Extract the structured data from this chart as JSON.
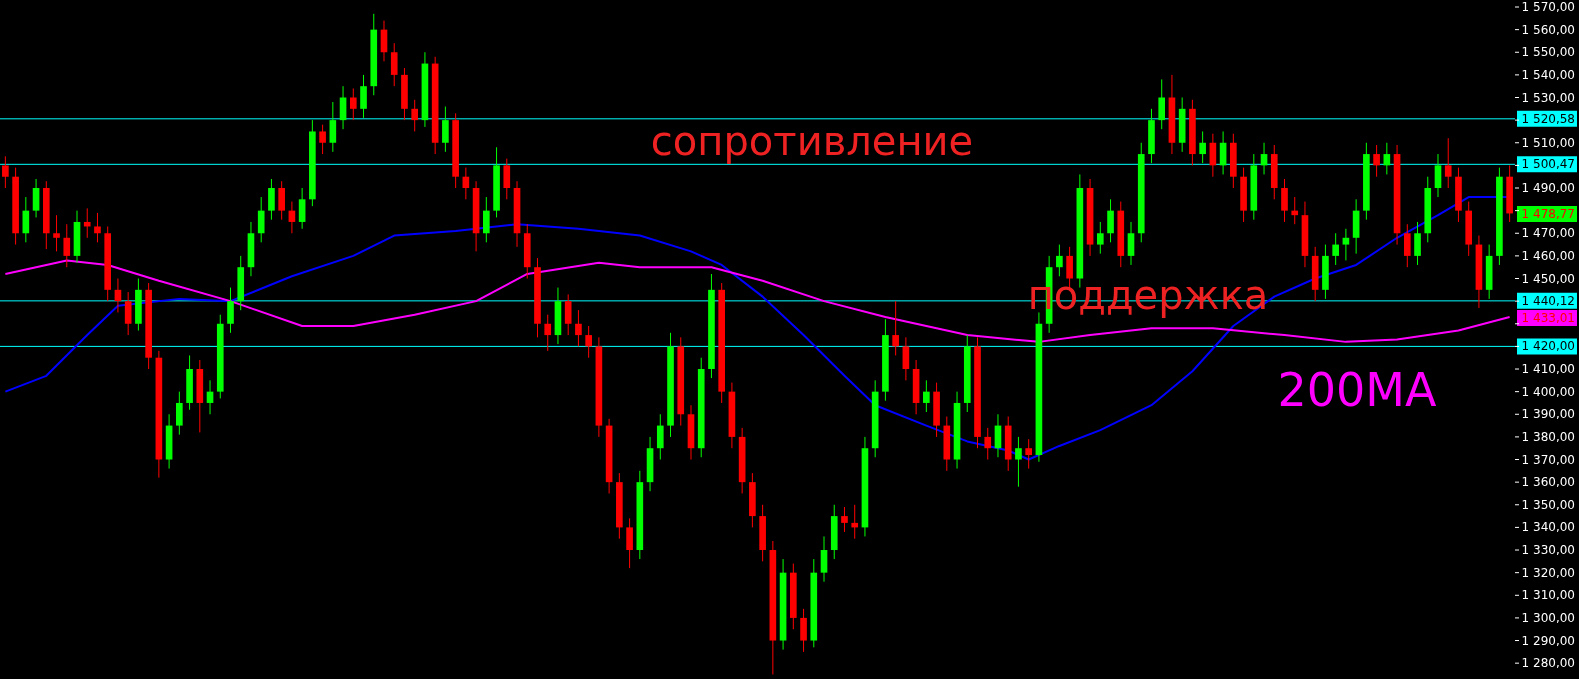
{
  "chart_data": {
    "type": "candlestick",
    "categories": [
      null,
      null,
      null,
      null,
      null,
      null,
      null,
      null,
      null,
      null,
      null,
      null,
      null,
      null,
      null,
      null,
      null,
      null,
      null,
      null,
      null,
      null,
      null,
      null,
      null,
      null,
      null,
      null,
      null,
      null,
      null,
      null,
      null,
      null,
      null,
      null,
      null,
      null,
      null,
      null,
      null,
      null,
      null,
      null,
      null,
      null,
      null,
      null,
      null,
      null,
      null,
      null,
      null,
      null,
      null,
      null,
      null,
      null,
      null,
      null,
      null,
      null,
      null,
      null,
      null,
      null,
      null,
      null,
      null,
      null,
      null,
      null,
      null,
      null,
      null,
      null,
      null,
      null,
      null,
      null,
      null,
      null,
      null,
      null,
      null,
      null,
      null,
      null,
      null,
      null,
      null,
      null,
      null,
      null,
      null,
      null,
      null,
      null,
      null,
      null,
      null,
      null,
      null,
      null,
      null,
      null,
      null,
      null,
      null,
      null,
      null,
      null,
      null,
      null,
      null,
      null,
      null,
      null,
      null,
      null,
      null,
      null,
      null,
      null,
      null,
      null,
      null,
      null,
      null,
      null,
      null,
      null,
      null,
      null,
      null,
      null,
      null,
      null,
      null,
      null,
      null,
      null,
      null,
      null,
      null,
      null,
      null,
      null
    ],
    "ohlc": [
      [
        1500,
        1504,
        1490,
        1495
      ],
      [
        1495,
        1499,
        1465,
        1470
      ],
      [
        1470,
        1486,
        1466,
        1480
      ],
      [
        1480,
        1494,
        1477,
        1490
      ],
      [
        1490,
        1493,
        1463,
        1470
      ],
      [
        1470,
        1478,
        1462,
        1468
      ],
      [
        1468,
        1474,
        1455,
        1460
      ],
      [
        1460,
        1480,
        1457,
        1475
      ],
      [
        1475,
        1481,
        1468,
        1473
      ],
      [
        1473,
        1479,
        1466,
        1470
      ],
      [
        1470,
        1473,
        1440,
        1445
      ],
      [
        1445,
        1450,
        1435,
        1440
      ],
      [
        1440,
        1444,
        1425,
        1430
      ],
      [
        1430,
        1450,
        1427,
        1445
      ],
      [
        1445,
        1448,
        1410,
        1415
      ],
      [
        1415,
        1418,
        1362,
        1370
      ],
      [
        1370,
        1390,
        1366,
        1385
      ],
      [
        1385,
        1400,
        1381,
        1395
      ],
      [
        1395,
        1416,
        1392,
        1410
      ],
      [
        1410,
        1414,
        1382,
        1395
      ],
      [
        1395,
        1405,
        1390,
        1400
      ],
      [
        1400,
        1434,
        1397,
        1430
      ],
      [
        1430,
        1446,
        1426,
        1440
      ],
      [
        1440,
        1460,
        1436,
        1455
      ],
      [
        1455,
        1475,
        1451,
        1470
      ],
      [
        1470,
        1486,
        1466,
        1480
      ],
      [
        1480,
        1494,
        1476,
        1490
      ],
      [
        1490,
        1493,
        1476,
        1480
      ],
      [
        1480,
        1484,
        1470,
        1475
      ],
      [
        1475,
        1490,
        1472,
        1485
      ],
      [
        1485,
        1520,
        1482,
        1515
      ],
      [
        1515,
        1518,
        1505,
        1510
      ],
      [
        1510,
        1528,
        1506,
        1520
      ],
      [
        1520,
        1535,
        1516,
        1530
      ],
      [
        1530,
        1534,
        1520,
        1525
      ],
      [
        1525,
        1540,
        1521,
        1535
      ],
      [
        1535,
        1567,
        1531,
        1560
      ],
      [
        1560,
        1564,
        1546,
        1550
      ],
      [
        1550,
        1554,
        1535,
        1540
      ],
      [
        1540,
        1543,
        1520,
        1525
      ],
      [
        1525,
        1529,
        1515,
        1520
      ],
      [
        1520,
        1550,
        1517,
        1545
      ],
      [
        1545,
        1548,
        1505,
        1510
      ],
      [
        1510,
        1526,
        1506,
        1520
      ],
      [
        1520,
        1523,
        1490,
        1495
      ],
      [
        1495,
        1499,
        1485,
        1490
      ],
      [
        1490,
        1493,
        1462,
        1470
      ],
      [
        1470,
        1486,
        1466,
        1480
      ],
      [
        1480,
        1508,
        1477,
        1500
      ],
      [
        1500,
        1503,
        1485,
        1490
      ],
      [
        1490,
        1493,
        1464,
        1470
      ],
      [
        1470,
        1474,
        1450,
        1455
      ],
      [
        1455,
        1459,
        1424,
        1430
      ],
      [
        1430,
        1434,
        1418,
        1425
      ],
      [
        1425,
        1446,
        1421,
        1440
      ],
      [
        1440,
        1443,
        1425,
        1430
      ],
      [
        1430,
        1436,
        1420,
        1425
      ],
      [
        1425,
        1429,
        1415,
        1420
      ],
      [
        1420,
        1424,
        1380,
        1385
      ],
      [
        1385,
        1388,
        1355,
        1360
      ],
      [
        1360,
        1364,
        1335,
        1340
      ],
      [
        1340,
        1344,
        1322,
        1330
      ],
      [
        1330,
        1365,
        1326,
        1360
      ],
      [
        1360,
        1380,
        1356,
        1375
      ],
      [
        1375,
        1390,
        1370,
        1385
      ],
      [
        1385,
        1426,
        1380,
        1420
      ],
      [
        1420,
        1424,
        1385,
        1390
      ],
      [
        1390,
        1394,
        1370,
        1375
      ],
      [
        1375,
        1415,
        1371,
        1410
      ],
      [
        1410,
        1452,
        1406,
        1445
      ],
      [
        1445,
        1448,
        1395,
        1400
      ],
      [
        1400,
        1404,
        1375,
        1380
      ],
      [
        1380,
        1384,
        1355,
        1360
      ],
      [
        1360,
        1364,
        1340,
        1345
      ],
      [
        1345,
        1350,
        1325,
        1330
      ],
      [
        1330,
        1334,
        1275,
        1290
      ],
      [
        1290,
        1326,
        1286,
        1320
      ],
      [
        1320,
        1324,
        1295,
        1300
      ],
      [
        1300,
        1304,
        1285,
        1290
      ],
      [
        1290,
        1326,
        1287,
        1320
      ],
      [
        1320,
        1336,
        1316,
        1330
      ],
      [
        1330,
        1350,
        1326,
        1345
      ],
      [
        1345,
        1349,
        1338,
        1342
      ],
      [
        1342,
        1350,
        1335,
        1340
      ],
      [
        1340,
        1380,
        1336,
        1375
      ],
      [
        1375,
        1405,
        1371,
        1400
      ],
      [
        1400,
        1432,
        1396,
        1425
      ],
      [
        1425,
        1440,
        1416,
        1420
      ],
      [
        1420,
        1424,
        1405,
        1410
      ],
      [
        1410,
        1414,
        1390,
        1395
      ],
      [
        1395,
        1405,
        1391,
        1400
      ],
      [
        1400,
        1404,
        1380,
        1385
      ],
      [
        1385,
        1389,
        1365,
        1370
      ],
      [
        1370,
        1400,
        1366,
        1395
      ],
      [
        1395,
        1425,
        1391,
        1420
      ],
      [
        1420,
        1424,
        1375,
        1380
      ],
      [
        1380,
        1384,
        1370,
        1375
      ],
      [
        1375,
        1390,
        1371,
        1385
      ],
      [
        1385,
        1389,
        1365,
        1370
      ],
      [
        1370,
        1380,
        1358,
        1375
      ],
      [
        1375,
        1379,
        1366,
        1372
      ],
      [
        1372,
        1435,
        1369,
        1430
      ],
      [
        1430,
        1460,
        1426,
        1455
      ],
      [
        1455,
        1465,
        1451,
        1460
      ],
      [
        1460,
        1464,
        1445,
        1450
      ],
      [
        1450,
        1496,
        1446,
        1490
      ],
      [
        1490,
        1494,
        1460,
        1465
      ],
      [
        1465,
        1475,
        1461,
        1470
      ],
      [
        1470,
        1485,
        1466,
        1480
      ],
      [
        1480,
        1484,
        1455,
        1460
      ],
      [
        1460,
        1475,
        1456,
        1470
      ],
      [
        1470,
        1510,
        1466,
        1505
      ],
      [
        1505,
        1525,
        1501,
        1520
      ],
      [
        1520,
        1538,
        1516,
        1530
      ],
      [
        1530,
        1540,
        1505,
        1510
      ],
      [
        1510,
        1530,
        1506,
        1525
      ],
      [
        1525,
        1529,
        1500,
        1505
      ],
      [
        1505,
        1515,
        1501,
        1510
      ],
      [
        1510,
        1514,
        1495,
        1500
      ],
      [
        1500,
        1515,
        1496,
        1510
      ],
      [
        1510,
        1514,
        1490,
        1495
      ],
      [
        1495,
        1499,
        1475,
        1480
      ],
      [
        1480,
        1505,
        1476,
        1500
      ],
      [
        1500,
        1510,
        1496,
        1505
      ],
      [
        1505,
        1509,
        1485,
        1490
      ],
      [
        1490,
        1494,
        1475,
        1480
      ],
      [
        1480,
        1486,
        1474,
        1478
      ],
      [
        1478,
        1484,
        1455,
        1460
      ],
      [
        1460,
        1464,
        1440,
        1445
      ],
      [
        1445,
        1465,
        1441,
        1460
      ],
      [
        1460,
        1470,
        1456,
        1465
      ],
      [
        1465,
        1472,
        1458,
        1468
      ],
      [
        1468,
        1485,
        1461,
        1480
      ],
      [
        1480,
        1510,
        1476,
        1505
      ],
      [
        1505,
        1509,
        1495,
        1500
      ],
      [
        1500,
        1510,
        1496,
        1505
      ],
      [
        1505,
        1509,
        1465,
        1470
      ],
      [
        1470,
        1474,
        1455,
        1460
      ],
      [
        1460,
        1475,
        1456,
        1470
      ],
      [
        1470,
        1495,
        1466,
        1490
      ],
      [
        1490,
        1505,
        1486,
        1500
      ],
      [
        1500,
        1512,
        1490,
        1495
      ],
      [
        1495,
        1499,
        1475,
        1480
      ],
      [
        1480,
        1484,
        1460,
        1465
      ],
      [
        1465,
        1469,
        1437,
        1445
      ],
      [
        1445,
        1465,
        1441,
        1460
      ],
      [
        1460,
        1499,
        1456,
        1495
      ],
      [
        1495,
        1500,
        1475,
        1478.77
      ]
    ],
    "colors": [
      "#ff0000",
      "#ff0000",
      "#00ff00",
      "#00ff00",
      "#ff0000",
      "#ff0000",
      "#ff0000",
      "#00ff00",
      "#ff0000",
      "#ff0000",
      "#ff0000",
      "#ff0000",
      "#ff0000",
      "#00ff00",
      "#ff0000",
      "#ff0000",
      "#00ff00",
      "#00ff00",
      "#00ff00",
      "#ff0000",
      "#00ff00",
      "#00ff00",
      "#00ff00",
      "#00ff00",
      "#00ff00",
      "#00ff00",
      "#00ff00",
      "#ff0000",
      "#ff0000",
      "#00ff00",
      "#00ff00",
      "#ff0000",
      "#00ff00",
      "#00ff00",
      "#ff0000",
      "#00ff00",
      "#00ff00",
      "#ff0000",
      "#ff0000",
      "#ff0000",
      "#ff0000",
      "#00ff00",
      "#ff0000",
      "#00ff00",
      "#ff0000",
      "#ff0000",
      "#ff0000",
      "#00ff00",
      "#00ff00",
      "#ff0000",
      "#ff0000",
      "#ff0000",
      "#ff0000",
      "#ff0000",
      "#00ff00",
      "#ff0000",
      "#ff0000",
      "#ff0000",
      "#ff0000",
      "#ff0000",
      "#ff0000",
      "#ff0000",
      "#00ff00",
      "#00ff00",
      "#00ff00",
      "#00ff00",
      "#ff0000",
      "#ff0000",
      "#00ff00",
      "#00ff00",
      "#ff0000",
      "#ff0000",
      "#ff0000",
      "#ff0000",
      "#ff0000",
      "#ff0000",
      "#00ff00",
      "#ff0000",
      "#ff0000",
      "#00ff00",
      "#00ff00",
      "#00ff00",
      "#ff0000",
      "#ff0000",
      "#00ff00",
      "#00ff00",
      "#00ff00",
      "#ff0000",
      "#ff0000",
      "#ff0000",
      "#00ff00",
      "#ff0000",
      "#ff0000",
      "#00ff00",
      "#00ff00",
      "#ff0000",
      "#ff0000",
      "#00ff00",
      "#ff0000",
      "#00ff00",
      "#ff0000",
      "#00ff00",
      "#00ff00",
      "#00ff00",
      "#ff0000",
      "#00ff00",
      "#ff0000",
      "#00ff00",
      "#00ff00",
      "#ff0000",
      "#00ff00",
      "#00ff00",
      "#00ff00",
      "#00ff00",
      "#ff0000",
      "#00ff00",
      "#ff0000",
      "#00ff00",
      "#ff0000",
      "#00ff00",
      "#ff0000",
      "#ff0000",
      "#00ff00",
      "#00ff00",
      "#ff0000",
      "#ff0000",
      "#ff0000",
      "#ff0000",
      "#ff0000",
      "#00ff00",
      "#00ff00",
      "#00ff00",
      "#00ff00",
      "#00ff00",
      "#ff0000",
      "#00ff00",
      "#ff0000",
      "#ff0000",
      "#00ff00",
      "#00ff00",
      "#00ff00",
      "#ff0000",
      "#ff0000",
      "#ff0000",
      "#ff0000",
      "#00ff00",
      "#00ff00",
      "#ff0000"
    ],
    "series": [
      {
        "type": "line",
        "color": "#0000ff",
        "values": [
          1400,
          null,
          null,
          null,
          1407,
          null,
          null,
          null,
          1425,
          null,
          null,
          1438,
          null,
          null,
          null,
          null,
          null,
          1441,
          null,
          null,
          null,
          null,
          1440,
          null,
          null,
          null,
          null,
          null,
          1451,
          null,
          null,
          null,
          null,
          null,
          1460,
          null,
          null,
          null,
          1469,
          null,
          null,
          null,
          null,
          null,
          1471,
          null,
          null,
          null,
          null,
          null,
          1474,
          null,
          null,
          null,
          null,
          null,
          1472,
          null,
          null,
          null,
          null,
          null,
          1469,
          null,
          null,
          null,
          null,
          1462,
          null,
          null,
          1456,
          null,
          null,
          null,
          1442,
          null,
          null,
          null,
          1425,
          null,
          null,
          null,
          1407,
          null,
          null,
          1394,
          null,
          null,
          null,
          null,
          1385,
          null,
          null,
          null,
          1378,
          null,
          null,
          null,
          1374,
          null,
          1370,
          null,
          null,
          1376,
          null,
          null,
          null,
          1383,
          null,
          null,
          null,
          null,
          1394,
          null,
          null,
          null,
          1409,
          null,
          null,
          null,
          1429,
          null,
          null,
          null,
          1442,
          null,
          null,
          null,
          1450,
          null,
          null,
          null,
          1456,
          null,
          null,
          null,
          1468,
          null,
          null,
          null,
          1478,
          null,
          null,
          1486,
          null,
          null,
          null,
          1486
        ]
      },
      {
        "type": "line",
        "name": "200MA",
        "color": "#ff00ff",
        "values": [
          1452,
          null,
          null,
          null,
          null,
          null,
          1458,
          null,
          null,
          null,
          1456,
          null,
          null,
          null,
          null,
          1449,
          null,
          null,
          null,
          null,
          null,
          null,
          1440,
          null,
          null,
          null,
          null,
          null,
          null,
          1429,
          null,
          null,
          null,
          null,
          1429,
          null,
          null,
          null,
          null,
          null,
          1434,
          null,
          null,
          null,
          null,
          null,
          1440,
          null,
          null,
          null,
          null,
          1452,
          null,
          null,
          null,
          null,
          null,
          null,
          1457,
          null,
          null,
          null,
          1455,
          null,
          null,
          null,
          null,
          null,
          null,
          1455,
          null,
          null,
          null,
          null,
          1449,
          null,
          null,
          null,
          null,
          null,
          1440,
          null,
          null,
          null,
          null,
          null,
          1433,
          null,
          null,
          null,
          null,
          null,
          null,
          null,
          1425,
          null,
          null,
          null,
          null,
          null,
          null,
          1422,
          null,
          null,
          null,
          null,
          1425,
          null,
          null,
          null,
          null,
          null,
          1428,
          null,
          null,
          null,
          null,
          null,
          1428,
          null,
          null,
          null,
          null,
          null,
          null,
          1425,
          null,
          null,
          null,
          null,
          null,
          1422,
          null,
          null,
          null,
          null,
          1423,
          null,
          null,
          null,
          null,
          null,
          1427,
          null,
          null,
          null,
          null,
          1433
        ]
      }
    ],
    "ylim": [
      1273,
      1570
    ],
    "yticks": [
      {
        "value": 1280,
        "label": "1 280,00"
      },
      {
        "value": 1290,
        "label": "1 290,00"
      },
      {
        "value": 1300,
        "label": "1 300,00"
      },
      {
        "value": 1310,
        "label": "1 310,00"
      },
      {
        "value": 1320,
        "label": "1 320,00"
      },
      {
        "value": 1330,
        "label": "1 330,00"
      },
      {
        "value": 1340,
        "label": "1 340,00"
      },
      {
        "value": 1350,
        "label": "1 350,00"
      },
      {
        "value": 1360,
        "label": "1 360,00"
      },
      {
        "value": 1370,
        "label": "1 370,00"
      },
      {
        "value": 1380,
        "label": "1 380,00"
      },
      {
        "value": 1390,
        "label": "1 390,00"
      },
      {
        "value": 1400,
        "label": "1 400,00"
      },
      {
        "value": 1410,
        "label": "1 410,00"
      },
      {
        "value": 1420,
        "label": null
      },
      {
        "value": 1430,
        "label": null
      },
      {
        "value": 1440,
        "label": null
      },
      {
        "value": 1450,
        "label": "1 450,00"
      },
      {
        "value": 1460,
        "label": "1 460,00"
      },
      {
        "value": 1470,
        "label": "1 470,00"
      },
      {
        "value": 1480,
        "label": null
      },
      {
        "value": 1490,
        "label": "1 490,00"
      },
      {
        "value": 1500,
        "label": null
      },
      {
        "value": 1510,
        "label": "1 510,00"
      },
      {
        "value": 1520,
        "label": null
      },
      {
        "value": 1530,
        "label": "1 530,00"
      },
      {
        "value": 1540,
        "label": "1 540,00"
      },
      {
        "value": 1550,
        "label": "1 550,00"
      },
      {
        "value": 1560,
        "label": "1 560,00"
      },
      {
        "value": 1570,
        "label": "1 570,00"
      }
    ],
    "ref_lines": [
      {
        "axis": "y",
        "value": 1520.58,
        "label": "1 520,58",
        "color": "#00ffff"
      },
      {
        "axis": "y",
        "value": 1500.47,
        "label": "1 500,47",
        "color": "#00ffff"
      },
      {
        "axis": "y",
        "value": 1440.12,
        "label": "1 440,12",
        "color": "#00ffff"
      },
      {
        "axis": "y",
        "value": 1420,
        "label": "1 420,00",
        "color": "#00ffff"
      }
    ],
    "annotations": [
      "сопротивление",
      "поддержка",
      "1 478,77",
      "1 433,01"
    ]
  }
}
